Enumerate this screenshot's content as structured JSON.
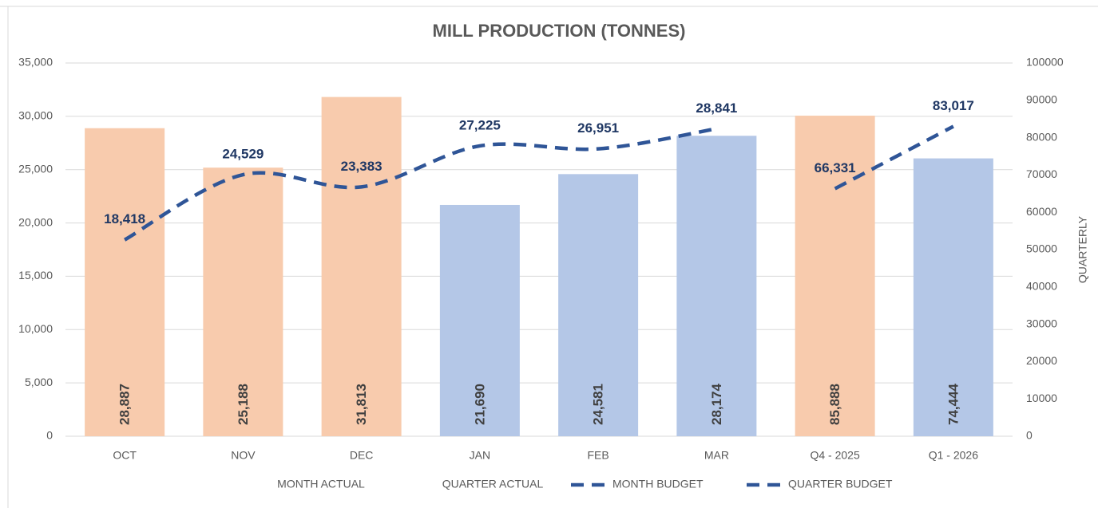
{
  "chart_data": {
    "type": "bar",
    "title": "MILL PRODUCTION (TONNES)",
    "y2_label": "QUARTERLY",
    "categories": [
      "OCT",
      "NOV",
      "DEC",
      "JAN",
      "FEB",
      "MAR",
      "Q4 - 2025",
      "Q1 - 2026"
    ],
    "ylim": [
      0,
      35000
    ],
    "yticks": [
      0,
      {
        "value": 5000,
        "label": "5,000"
      },
      {
        "value": 10000,
        "label": "10,000"
      },
      {
        "value": 15000,
        "label": "15,000"
      },
      {
        "value": 20000,
        "label": "20,000"
      },
      {
        "value": 25000,
        "label": "25,000"
      },
      {
        "value": 30000,
        "label": "30,000"
      },
      {
        "value": 35000,
        "label": "35,000"
      }
    ],
    "y2lim": [
      0,
      100000
    ],
    "y2ticks": [
      0,
      10000,
      20000,
      30000,
      40000,
      50000,
      60000,
      70000,
      80000,
      90000,
      100000
    ],
    "grid": true,
    "series": [
      {
        "name": "MONTH ACTUAL",
        "type": "bar",
        "axis": "y",
        "colors": [
          "#f8cbad",
          "#f8cbad",
          "#f8cbad",
          "#b4c7e7",
          "#b4c7e7",
          "#b4c7e7",
          null,
          null
        ],
        "values": [
          28887,
          25188,
          31813,
          21690,
          24581,
          28174,
          null,
          null
        ],
        "value_labels": [
          "28,887",
          "25,188",
          "31,813",
          "21,690",
          "24,581",
          "28,174",
          null,
          null
        ]
      },
      {
        "name": "QUARTER ACTUAL",
        "type": "bar",
        "axis": "y2",
        "colors": [
          null,
          null,
          null,
          null,
          null,
          null,
          "#f8cbad",
          "#b4c7e7"
        ],
        "values": [
          null,
          null,
          null,
          null,
          null,
          null,
          85888,
          74444
        ],
        "value_labels": [
          null,
          null,
          null,
          null,
          null,
          null,
          "85,888",
          "74,444"
        ]
      },
      {
        "name": "MONTH BUDGET",
        "type": "line",
        "axis": "y",
        "color": "#2f5597",
        "values": [
          18418,
          24529,
          23383,
          27225,
          26951,
          28841,
          null,
          null
        ],
        "value_labels": [
          "18,418",
          "24,529",
          "23,383",
          "27,225",
          "26,951",
          "28,841",
          null,
          null
        ]
      },
      {
        "name": "QUARTER BUDGET",
        "type": "line",
        "axis": "y2",
        "color": "#2f5597",
        "values": [
          null,
          null,
          null,
          null,
          null,
          null,
          66331,
          83017
        ],
        "value_labels": [
          null,
          null,
          null,
          null,
          null,
          null,
          "66,331",
          "83,017"
        ]
      }
    ]
  }
}
